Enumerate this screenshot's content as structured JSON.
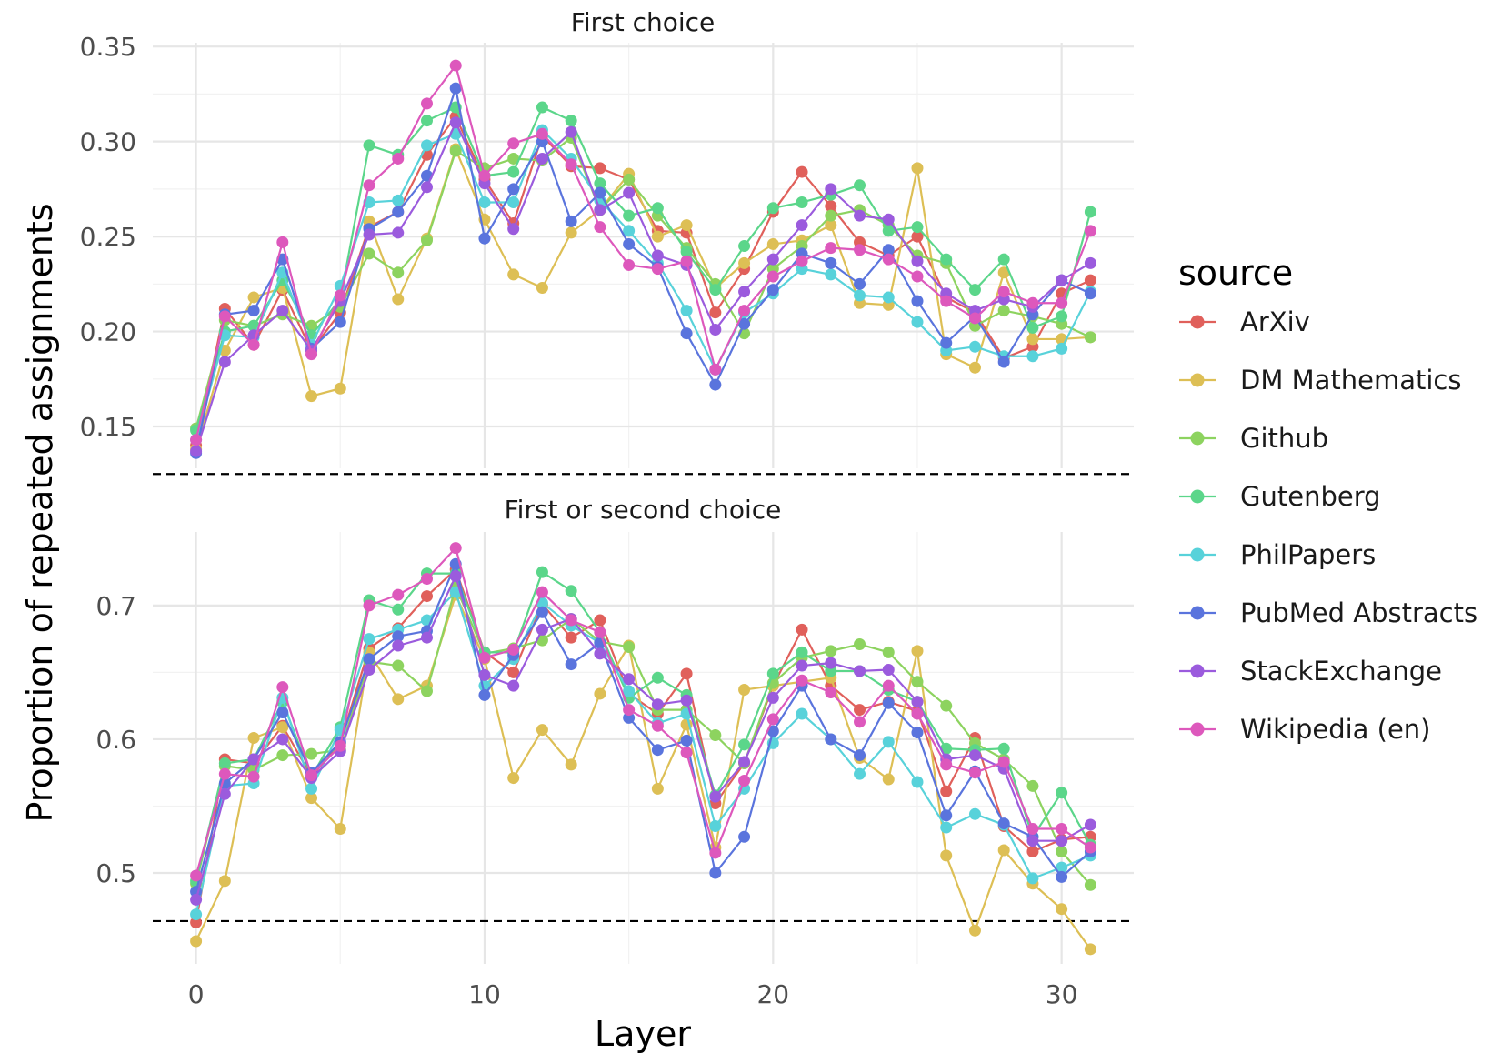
{
  "chart_data": {
    "type": "line",
    "xlabel": "Layer",
    "ylabel": "Proportion of repeated assignments",
    "legend_title": "source",
    "legend_position": "right",
    "grid": true,
    "x": [
      0,
      1,
      2,
      3,
      4,
      5,
      6,
      7,
      8,
      9,
      10,
      11,
      12,
      13,
      14,
      15,
      16,
      17,
      18,
      19,
      20,
      21,
      22,
      23,
      24,
      25,
      26,
      27,
      28,
      29,
      30,
      31
    ],
    "xlim": [
      -1.5,
      32.5
    ],
    "x_ticks": [
      0,
      10,
      20,
      30
    ],
    "series_meta": [
      {
        "name": "ArXiv",
        "color": "#E0605B"
      },
      {
        "name": "DM Mathematics",
        "color": "#DDBF55"
      },
      {
        "name": "Github",
        "color": "#8DD35F"
      },
      {
        "name": "Gutenberg",
        "color": "#5BD68A"
      },
      {
        "name": "PhilPapers",
        "color": "#58D2DA"
      },
      {
        "name": "PubMed Abstracts",
        "color": "#5A74DD"
      },
      {
        "name": "StackExchange",
        "color": "#9B5BDD"
      },
      {
        "name": "Wikipedia (en)",
        "color": "#DD58BC"
      }
    ],
    "panels": [
      {
        "title": "First choice",
        "ylim": [
          0.128,
          0.352
        ],
        "y_ticks": [
          0.15,
          0.2,
          0.25,
          0.3,
          0.35
        ],
        "y_tick_labels": [
          "0.15",
          "0.20",
          "0.25",
          "0.30",
          "0.35"
        ],
        "reference_line": 0.125,
        "series": [
          {
            "name": "ArXiv",
            "values": [
              0.14,
              0.212,
              0.193,
              0.222,
              0.19,
              0.21,
              0.255,
              0.263,
              0.293,
              0.313,
              0.28,
              0.257,
              0.303,
              0.287,
              0.286,
              0.28,
              0.253,
              0.252,
              0.21,
              0.233,
              0.263,
              0.284,
              0.266,
              0.247,
              0.24,
              0.25,
              0.218,
              0.21,
              0.186,
              0.192,
              0.22,
              0.227
            ]
          },
          {
            "name": "DM Mathematics",
            "values": [
              0.138,
              0.19,
              0.218,
              0.223,
              0.166,
              0.17,
              0.258,
              0.217,
              0.249,
              0.296,
              0.259,
              0.23,
              0.223,
              0.252,
              0.264,
              0.283,
              0.25,
              0.256,
              0.223,
              0.236,
              0.246,
              0.248,
              0.256,
              0.215,
              0.214,
              0.286,
              0.188,
              0.181,
              0.231,
              0.196,
              0.196,
              0.197
            ]
          },
          {
            "name": "Github",
            "values": [
              0.149,
              0.206,
              0.203,
              0.209,
              0.203,
              0.213,
              0.241,
              0.231,
              0.248,
              0.295,
              0.286,
              0.291,
              0.29,
              0.302,
              0.264,
              0.28,
              0.261,
              0.244,
              0.225,
              0.199,
              0.233,
              0.245,
              0.261,
              0.264,
              0.256,
              0.24,
              0.236,
              0.203,
              0.211,
              0.208,
              0.204,
              0.197
            ]
          },
          {
            "name": "Gutenberg",
            "values": [
              0.148,
              0.2,
              0.203,
              0.227,
              0.198,
              0.217,
              0.298,
              0.293,
              0.311,
              0.318,
              0.282,
              0.284,
              0.318,
              0.311,
              0.278,
              0.261,
              0.265,
              0.242,
              0.222,
              0.245,
              0.265,
              0.268,
              0.272,
              0.277,
              0.253,
              0.255,
              0.238,
              0.222,
              0.238,
              0.202,
              0.208,
              0.263
            ]
          },
          {
            "name": "PhilPapers",
            "values": [
              0.143,
              0.198,
              0.197,
              0.231,
              0.193,
              0.224,
              0.268,
              0.269,
              0.298,
              0.304,
              0.268,
              0.268,
              0.306,
              0.291,
              0.269,
              0.253,
              0.236,
              0.211,
              0.18,
              0.21,
              0.22,
              0.233,
              0.23,
              0.219,
              0.218,
              0.205,
              0.19,
              0.192,
              0.187,
              0.187,
              0.191,
              0.221
            ]
          },
          {
            "name": "PubMed Abstracts",
            "values": [
              0.136,
              0.209,
              0.211,
              0.238,
              0.191,
              0.205,
              0.254,
              0.263,
              0.282,
              0.328,
              0.249,
              0.275,
              0.3,
              0.258,
              0.273,
              0.246,
              0.234,
              0.199,
              0.172,
              0.204,
              0.222,
              0.241,
              0.236,
              0.225,
              0.243,
              0.216,
              0.194,
              0.208,
              0.184,
              0.209,
              0.227,
              0.22
            ]
          },
          {
            "name": "StackExchange",
            "values": [
              0.137,
              0.184,
              0.198,
              0.211,
              0.19,
              0.216,
              0.251,
              0.252,
              0.276,
              0.31,
              0.278,
              0.254,
              0.291,
              0.305,
              0.264,
              0.273,
              0.24,
              0.235,
              0.201,
              0.221,
              0.238,
              0.256,
              0.275,
              0.261,
              0.259,
              0.237,
              0.22,
              0.211,
              0.217,
              0.213,
              0.227,
              0.236
            ]
          },
          {
            "name": "Wikipedia (en)",
            "values": [
              0.143,
              0.208,
              0.193,
              0.247,
              0.188,
              0.219,
              0.277,
              0.291,
              0.32,
              0.34,
              0.282,
              0.299,
              0.304,
              0.288,
              0.255,
              0.235,
              0.233,
              0.237,
              0.18,
              0.211,
              0.229,
              0.237,
              0.244,
              0.243,
              0.238,
              0.229,
              0.216,
              0.207,
              0.221,
              0.215,
              0.215,
              0.253
            ]
          }
        ]
      },
      {
        "title": "First or second choice",
        "ylim": [
          0.432,
          0.755
        ],
        "y_ticks": [
          0.5,
          0.6,
          0.7
        ],
        "y_tick_labels": [
          "0.5",
          "0.6",
          "0.7"
        ],
        "reference_line": 0.464,
        "series": [
          {
            "name": "ArXiv",
            "values": [
              0.463,
              0.585,
              0.582,
              0.61,
              0.572,
              0.597,
              0.668,
              0.683,
              0.707,
              0.727,
              0.665,
              0.65,
              0.701,
              0.676,
              0.689,
              0.634,
              0.619,
              0.649,
              0.552,
              0.582,
              0.64,
              0.682,
              0.64,
              0.622,
              0.628,
              0.621,
              0.561,
              0.601,
              0.535,
              0.516,
              0.525,
              0.527
            ]
          },
          {
            "name": "DM Mathematics",
            "values": [
              0.449,
              0.494,
              0.601,
              0.609,
              0.556,
              0.533,
              0.665,
              0.63,
              0.64,
              0.708,
              0.66,
              0.571,
              0.607,
              0.581,
              0.634,
              0.67,
              0.563,
              0.611,
              0.519,
              0.637,
              0.64,
              0.643,
              0.646,
              0.586,
              0.57,
              0.666,
              0.513,
              0.457,
              0.517,
              0.492,
              0.473,
              0.443
            ]
          },
          {
            "name": "Github",
            "values": [
              0.492,
              0.58,
              0.577,
              0.588,
              0.589,
              0.592,
              0.658,
              0.655,
              0.636,
              0.714,
              0.664,
              0.668,
              0.674,
              0.69,
              0.673,
              0.669,
              0.622,
              0.622,
              0.603,
              0.582,
              0.642,
              0.661,
              0.666,
              0.671,
              0.665,
              0.643,
              0.625,
              0.597,
              0.585,
              0.565,
              0.516,
              0.491
            ]
          },
          {
            "name": "Gutenberg",
            "values": [
              0.494,
              0.582,
              0.585,
              0.628,
              0.572,
              0.609,
              0.704,
              0.697,
              0.724,
              0.724,
              0.665,
              0.665,
              0.725,
              0.711,
              0.68,
              0.631,
              0.646,
              0.633,
              0.558,
              0.596,
              0.649,
              0.665,
              0.651,
              0.651,
              0.637,
              0.628,
              0.593,
              0.592,
              0.593,
              0.527,
              0.56,
              0.521
            ]
          },
          {
            "name": "PhilPapers",
            "values": [
              0.469,
              0.565,
              0.567,
              0.631,
              0.563,
              0.607,
              0.675,
              0.682,
              0.689,
              0.71,
              0.64,
              0.66,
              0.702,
              0.685,
              0.672,
              0.636,
              0.612,
              0.619,
              0.535,
              0.563,
              0.597,
              0.619,
              0.6,
              0.574,
              0.598,
              0.568,
              0.534,
              0.544,
              0.536,
              0.496,
              0.504,
              0.513
            ]
          },
          {
            "name": "PubMed Abstracts",
            "values": [
              0.486,
              0.567,
              0.585,
              0.62,
              0.575,
              0.598,
              0.66,
              0.677,
              0.681,
              0.731,
              0.633,
              0.663,
              0.695,
              0.656,
              0.672,
              0.616,
              0.592,
              0.599,
              0.5,
              0.527,
              0.606,
              0.64,
              0.6,
              0.588,
              0.627,
              0.605,
              0.543,
              0.576,
              0.537,
              0.527,
              0.497,
              0.516
            ]
          },
          {
            "name": "StackExchange",
            "values": [
              0.48,
              0.559,
              0.585,
              0.6,
              0.571,
              0.591,
              0.652,
              0.67,
              0.676,
              0.722,
              0.648,
              0.64,
              0.682,
              0.69,
              0.664,
              0.645,
              0.626,
              0.629,
              0.557,
              0.583,
              0.631,
              0.655,
              0.657,
              0.651,
              0.652,
              0.628,
              0.585,
              0.588,
              0.578,
              0.524,
              0.524,
              0.536
            ]
          },
          {
            "name": "Wikipedia (en)",
            "values": [
              0.498,
              0.574,
              0.572,
              0.639,
              0.573,
              0.595,
              0.7,
              0.708,
              0.72,
              0.743,
              0.661,
              0.667,
              0.71,
              0.689,
              0.68,
              0.622,
              0.61,
              0.59,
              0.515,
              0.569,
              0.615,
              0.644,
              0.635,
              0.613,
              0.64,
              0.619,
              0.581,
              0.575,
              0.583,
              0.533,
              0.533,
              0.519
            ]
          }
        ]
      }
    ]
  }
}
